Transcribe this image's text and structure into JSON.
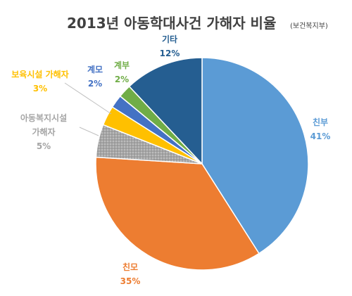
{
  "chart_data": {
    "type": "pie",
    "title": "2013년 아동학대사건 가해자 비율",
    "subtitle": "(보건복지부)",
    "start_angle_deg": 0,
    "direction": "clockwise",
    "slices": [
      {
        "label": "친부",
        "value": 41,
        "value_label": "41%",
        "color": "#5B9BD5"
      },
      {
        "label": "친모",
        "value": 35,
        "value_label": "35%",
        "color": "#ED7D31"
      },
      {
        "label": "아동복지시설 가해자",
        "label_lines": [
          "아동복지시설",
          "가해자"
        ],
        "value": 5,
        "value_label": "5%",
        "color": "#A5A5A5",
        "pattern": "dots"
      },
      {
        "label": "보육시설 가해자",
        "value": 3,
        "value_label": "3%",
        "color": "#FFC000"
      },
      {
        "label": "계모",
        "value": 2,
        "value_label": "2%",
        "color": "#4472C4"
      },
      {
        "label": "계부",
        "value": 2,
        "value_label": "2%",
        "color": "#70AD47"
      },
      {
        "label": "기타",
        "value": 12,
        "value_label": "12%",
        "color": "#255E91"
      }
    ]
  }
}
